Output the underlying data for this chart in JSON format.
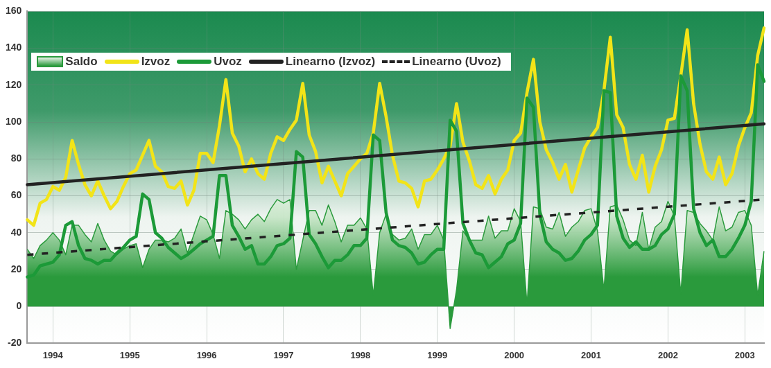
{
  "chart_data": {
    "type": "line",
    "categories": [
      null,
      null,
      null,
      null,
      "1994",
      null,
      null,
      null,
      null,
      null,
      null,
      null,
      null,
      null,
      null,
      null,
      "1995",
      null,
      null,
      null,
      null,
      null,
      null,
      null,
      null,
      null,
      null,
      null,
      "1996",
      null,
      null,
      null,
      null,
      null,
      null,
      null,
      null,
      null,
      null,
      null,
      "1997",
      null,
      null,
      null,
      null,
      null,
      null,
      null,
      null,
      null,
      null,
      null,
      "1998",
      null,
      null,
      null,
      null,
      null,
      null,
      null,
      null,
      null,
      null,
      null,
      "1999",
      null,
      null,
      null,
      null,
      null,
      null,
      null,
      null,
      null,
      null,
      null,
      "2000",
      null,
      null,
      null,
      null,
      null,
      null,
      null,
      null,
      null,
      null,
      null,
      "2001",
      null,
      null,
      null,
      null,
      null,
      null,
      null,
      null,
      null,
      null,
      null,
      "2002",
      null,
      null,
      null,
      null,
      null,
      null,
      null,
      null,
      null,
      null,
      null,
      "2003",
      null,
      null,
      null
    ],
    "series": [
      {
        "name": "Saldo",
        "type": "area",
        "color": "#2a9a3c",
        "values": [
          31,
          26,
          33,
          36,
          40,
          36,
          28,
          44,
          44,
          39,
          35,
          45,
          36,
          30,
          28,
          31,
          33,
          34,
          21,
          31,
          36,
          36,
          35,
          37,
          42,
          29,
          39,
          49,
          47,
          39,
          26,
          52,
          50,
          47,
          42,
          47,
          50,
          46,
          53,
          58,
          56,
          58,
          20,
          36,
          52,
          52,
          44,
          55,
          46,
          35,
          44,
          44,
          48,
          42,
          6,
          40,
          50,
          39,
          36,
          37,
          42,
          31,
          39,
          39,
          44,
          36,
          -12,
          9,
          41,
          36,
          36,
          36,
          49,
          37,
          41,
          41,
          53,
          46,
          1,
          54,
          53,
          43,
          42,
          51,
          38,
          43,
          46,
          52,
          53,
          41,
          9,
          54,
          55,
          47,
          36,
          33,
          51,
          31,
          43,
          46,
          57,
          49,
          7,
          52,
          51,
          45,
          41,
          36,
          54,
          41,
          43,
          51,
          52,
          44,
          6,
          30
        ]
      },
      {
        "name": "Izvoz",
        "color": "#f2e418",
        "values": [
          47,
          44,
          56,
          58,
          65,
          63,
          70,
          90,
          77,
          66,
          60,
          68,
          60,
          53,
          57,
          65,
          72,
          74,
          82,
          90,
          76,
          73,
          65,
          64,
          68,
          55,
          63,
          83,
          83,
          78,
          98,
          123,
          94,
          87,
          73,
          80,
          72,
          69,
          83,
          92,
          90,
          96,
          101,
          121,
          93,
          84,
          67,
          76,
          68,
          60,
          72,
          76,
          80,
          83,
          94,
          121,
          103,
          82,
          68,
          67,
          64,
          54,
          68,
          69,
          74,
          80,
          87,
          110,
          89,
          79,
          66,
          64,
          71,
          61,
          69,
          74,
          90,
          94,
          116,
          134,
          100,
          85,
          78,
          69,
          77,
          62,
          74,
          86,
          92,
          97,
          117,
          146,
          104,
          97,
          77,
          69,
          82,
          62,
          76,
          85,
          101,
          102,
          125,
          150,
          110,
          88,
          73,
          69,
          81,
          66,
          72,
          87,
          97,
          105,
          136,
          151
        ]
      },
      {
        "name": "Uvoz",
        "color": "#1c9a38",
        "values": [
          16,
          17,
          22,
          23,
          24,
          28,
          44,
          46,
          33,
          26,
          25,
          23,
          25,
          25,
          29,
          32,
          36,
          38,
          61,
          58,
          40,
          37,
          32,
          29,
          26,
          28,
          31,
          34,
          36,
          38,
          71,
          71,
          44,
          38,
          31,
          33,
          23,
          23,
          27,
          33,
          34,
          37,
          84,
          81,
          39,
          34,
          27,
          21,
          25,
          25,
          28,
          33,
          33,
          37,
          93,
          90,
          51,
          36,
          33,
          32,
          29,
          23,
          24,
          28,
          31,
          31,
          101,
          95,
          45,
          36,
          29,
          28,
          21,
          24,
          27,
          34,
          36,
          45,
          113,
          108,
          50,
          35,
          31,
          29,
          25,
          26,
          30,
          36,
          39,
          44,
          117,
          116,
          49,
          37,
          32,
          35,
          31,
          31,
          33,
          39,
          42,
          50,
          125,
          117,
          53,
          40,
          33,
          36,
          27,
          27,
          31,
          37,
          44,
          57,
          131,
          122
        ]
      },
      {
        "name": "Linearno (Izvoz)",
        "color": "#222222",
        "line_style": "solid",
        "values": [
          66,
          null,
          null,
          null,
          null,
          null,
          null,
          null,
          null,
          null,
          null,
          null,
          null,
          null,
          null,
          null,
          null,
          null,
          null,
          null,
          null,
          null,
          null,
          null,
          null,
          null,
          null,
          null,
          null,
          null,
          null,
          null,
          null,
          null,
          null,
          null,
          null,
          null,
          null,
          null,
          null,
          null,
          null,
          null,
          null,
          null,
          null,
          null,
          null,
          null,
          null,
          null,
          null,
          null,
          null,
          null,
          null,
          null,
          null,
          null,
          null,
          null,
          null,
          null,
          null,
          null,
          null,
          null,
          null,
          null,
          null,
          null,
          null,
          null,
          null,
          null,
          null,
          null,
          null,
          null,
          null,
          null,
          null,
          null,
          null,
          null,
          null,
          null,
          null,
          null,
          null,
          null,
          null,
          null,
          null,
          null,
          null,
          null,
          null,
          null,
          null,
          null,
          null,
          null,
          null,
          null,
          null,
          null,
          null,
          null,
          null,
          null,
          null,
          null,
          null,
          99
        ]
      },
      {
        "name": "Linearno (Uvoz)",
        "color": "#222222",
        "line_style": "dashed",
        "values": [
          28,
          null,
          null,
          null,
          null,
          null,
          null,
          null,
          null,
          null,
          null,
          null,
          null,
          null,
          null,
          null,
          null,
          null,
          null,
          null,
          null,
          null,
          null,
          null,
          null,
          null,
          null,
          null,
          null,
          null,
          null,
          null,
          null,
          null,
          null,
          null,
          null,
          null,
          null,
          null,
          null,
          null,
          null,
          null,
          null,
          null,
          null,
          null,
          null,
          null,
          null,
          null,
          null,
          null,
          null,
          null,
          null,
          null,
          null,
          null,
          null,
          null,
          null,
          null,
          null,
          null,
          null,
          null,
          null,
          null,
          null,
          null,
          null,
          null,
          null,
          null,
          null,
          null,
          null,
          null,
          null,
          null,
          null,
          null,
          null,
          null,
          null,
          null,
          null,
          null,
          null,
          null,
          null,
          null,
          null,
          null,
          null,
          null,
          null,
          null,
          null,
          null,
          null,
          null,
          null,
          null,
          null,
          null,
          null,
          null,
          null,
          null,
          null,
          null,
          null,
          58
        ]
      }
    ],
    "ylim": [
      -20,
      160
    ],
    "yticks": [
      -20,
      0,
      20,
      40,
      60,
      80,
      100,
      120,
      140,
      160
    ],
    "grid": true,
    "legend": "top left",
    "marker": "none"
  }
}
